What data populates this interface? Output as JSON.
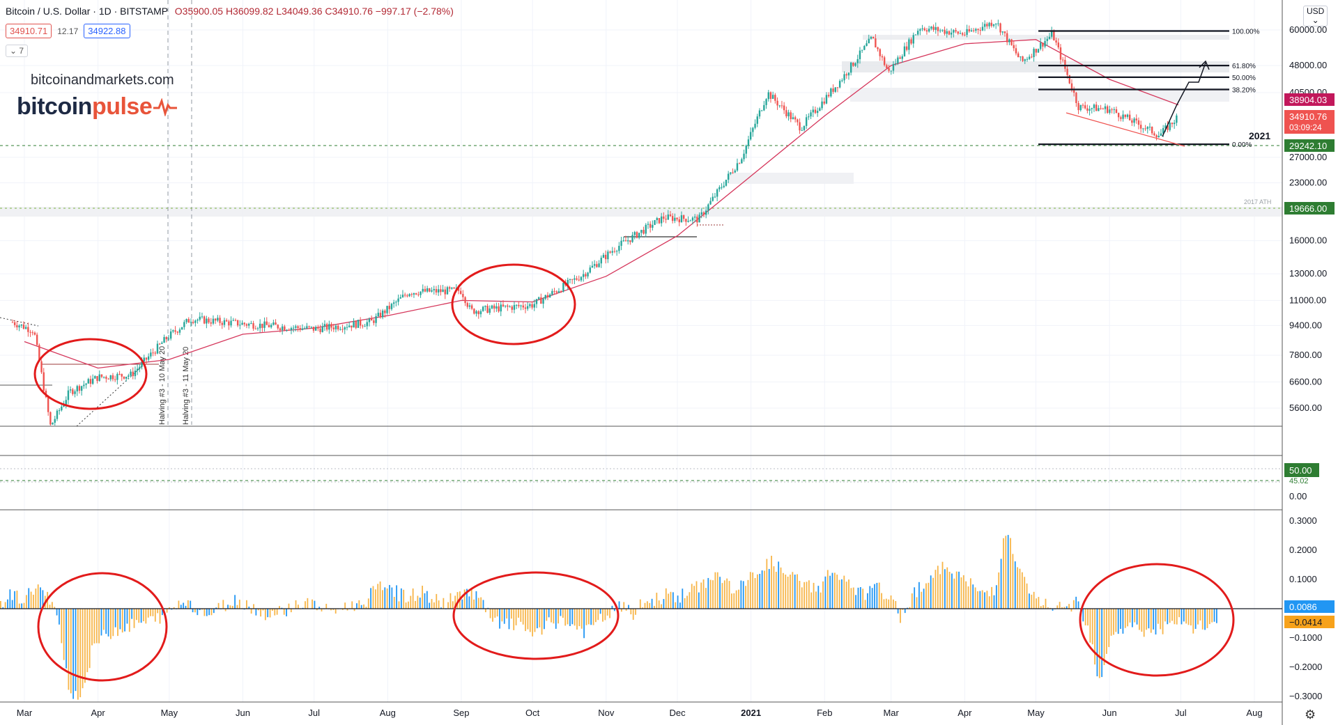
{
  "header": {
    "symbol": "Bitcoin / U.S. Dollar · 1D · BITSTAMP",
    "ohlc": "O35900.05  H36099.82  L34049.36  C34910.76  −997.17 (−2.78%)",
    "bid": "34910.71",
    "spread": "12.17",
    "ask": "34922.88",
    "indicator_toggle": "⌄ 7"
  },
  "branding": {
    "site": "bitcoinandmarkets.com",
    "logo_part1": "bitcoin",
    "logo_part2": "pulse"
  },
  "currency_badge": "USD\n⌄",
  "colors": {
    "up": "#26a69a",
    "down": "#ef5350",
    "ma": "#d5365b",
    "circle": "#e21b1b",
    "hist_pos": "#f7b548",
    "hist_blue": "#2196f3"
  },
  "chart_data": {
    "type": "candlestick",
    "title": "Bitcoin / U.S. Dollar",
    "y_scale": "log",
    "y_ticks": [
      "60000.00",
      "48000.00",
      "40500.00",
      "34910.76",
      "27000.00",
      "23000.00",
      "19666.00",
      "16000.00",
      "13000.00",
      "11000.00",
      "9400.00",
      "7800.00",
      "6600.00",
      "5600.00"
    ],
    "x_months": [
      "Mar",
      "Apr",
      "May",
      "Jun",
      "Jul",
      "Aug",
      "Sep",
      "Oct",
      "Nov",
      "Dec",
      "2021",
      "Feb",
      "Mar",
      "Apr",
      "May",
      "Jun",
      "Jul",
      "Aug"
    ],
    "price_series": [
      {
        "date": "2020-02-25",
        "close": 9600
      },
      {
        "date": "2020-03-05",
        "close": 9100
      },
      {
        "date": "2020-03-12",
        "close": 5000
      },
      {
        "date": "2020-03-20",
        "close": 6200
      },
      {
        "date": "2020-04-01",
        "close": 6800
      },
      {
        "date": "2020-04-15",
        "close": 6900
      },
      {
        "date": "2020-04-30",
        "close": 8700
      },
      {
        "date": "2020-05-10",
        "close": 9800
      },
      {
        "date": "2020-06-01",
        "close": 9500
      },
      {
        "date": "2020-07-01",
        "close": 9200
      },
      {
        "date": "2020-07-25",
        "close": 9600
      },
      {
        "date": "2020-08-10",
        "close": 11600
      },
      {
        "date": "2020-09-01",
        "close": 11700
      },
      {
        "date": "2020-09-05",
        "close": 10300
      },
      {
        "date": "2020-10-01",
        "close": 10700
      },
      {
        "date": "2020-10-22",
        "close": 12900
      },
      {
        "date": "2020-11-05",
        "close": 15300
      },
      {
        "date": "2020-11-25",
        "close": 18500
      },
      {
        "date": "2020-12-10",
        "close": 18300
      },
      {
        "date": "2020-12-28",
        "close": 27000
      },
      {
        "date": "2021-01-08",
        "close": 40500
      },
      {
        "date": "2021-01-22",
        "close": 32500
      },
      {
        "date": "2021-02-08",
        "close": 44000
      },
      {
        "date": "2021-02-21",
        "close": 57000
      },
      {
        "date": "2021-02-28",
        "close": 46000
      },
      {
        "date": "2021-03-13",
        "close": 61000
      },
      {
        "date": "2021-04-01",
        "close": 58500
      },
      {
        "date": "2021-04-14",
        "close": 63500
      },
      {
        "date": "2021-04-25",
        "close": 49000
      },
      {
        "date": "2021-05-08",
        "close": 58500
      },
      {
        "date": "2021-05-19",
        "close": 37000
      },
      {
        "date": "2021-06-01",
        "close": 36500
      },
      {
        "date": "2021-06-22",
        "close": 31000
      },
      {
        "date": "2021-06-30",
        "close": 34910.76
      }
    ],
    "moving_average": [
      {
        "date": "2020-03-01",
        "value": 8500
      },
      {
        "date": "2020-04-01",
        "value": 7200
      },
      {
        "date": "2020-05-01",
        "value": 7600
      },
      {
        "date": "2020-06-01",
        "value": 8900
      },
      {
        "date": "2020-07-01",
        "value": 9250
      },
      {
        "date": "2020-08-01",
        "value": 10000
      },
      {
        "date": "2020-09-01",
        "value": 11000
      },
      {
        "date": "2020-10-01",
        "value": 10900
      },
      {
        "date": "2020-11-01",
        "value": 12800
      },
      {
        "date": "2020-12-01",
        "value": 16500
      },
      {
        "date": "2021-01-01",
        "value": 24000
      },
      {
        "date": "2021-02-01",
        "value": 35000
      },
      {
        "date": "2021-03-01",
        "value": 48000
      },
      {
        "date": "2021-04-01",
        "value": 55000
      },
      {
        "date": "2021-05-01",
        "value": 56500
      },
      {
        "date": "2021-06-01",
        "value": 44000
      },
      {
        "date": "2021-06-30",
        "value": 37500
      }
    ],
    "fibonacci": [
      {
        "level": "100.00%",
        "price": 59600
      },
      {
        "level": "61.80%",
        "price": 48000
      },
      {
        "level": "50.00%",
        "price": 44600
      },
      {
        "level": "38.20%",
        "price": 41300
      },
      {
        "level": "0.00%",
        "price": 29300
      }
    ],
    "annotations": {
      "halving_1": "Halving #3 - 10 May 20",
      "halving_2": "Halving #3 - 11 May 20",
      "year_label": "2021",
      "ath_label": "2017 ATH"
    },
    "price_tags": {
      "upper": "38904.03",
      "current": "34910.76",
      "countdown": "03:09:24",
      "support": "29242.10",
      "ath": "19666.00"
    },
    "middle_panel": {
      "tag_value": "50.00",
      "tag_sub": "45.02",
      "tick": "0.00"
    },
    "oscillator": {
      "y_ticks": [
        "0.3000",
        "0.2000",
        "0.1000",
        "−0.1000",
        "−0.2000",
        "−0.3000"
      ],
      "ylim": [
        -0.31,
        0.32
      ],
      "tags": [
        "0.0086",
        "−0.0414"
      ],
      "values": [
        0.02,
        0.05,
        0.03,
        0.08,
        0.04,
        -0.05,
        -0.3,
        -0.28,
        -0.12,
        -0.09,
        -0.07,
        -0.06,
        -0.05,
        -0.04,
        -0.02,
        0.01,
        0.03,
        -0.01,
        -0.02,
        0.01,
        0.03,
        0.02,
        -0.01,
        -0.02,
        -0.01,
        0.01,
        0.02,
        0.01,
        -0.01,
        0.0,
        0.01,
        0.02,
        0.06,
        0.09,
        0.05,
        0.04,
        0.06,
        0.03,
        0.02,
        0.04,
        0.07,
        0.03,
        -0.04,
        -0.06,
        -0.05,
        -0.07,
        -0.09,
        -0.05,
        -0.04,
        -0.06,
        -0.08,
        -0.05,
        -0.02,
        0.01,
        -0.02,
        0.02,
        0.03,
        0.05,
        0.04,
        0.06,
        0.08,
        0.12,
        0.09,
        0.06,
        0.1,
        0.14,
        0.16,
        0.12,
        0.1,
        0.08,
        0.07,
        0.13,
        0.1,
        0.06,
        0.05,
        0.07,
        0.04,
        -0.03,
        0.05,
        0.09,
        0.12,
        0.15,
        0.11,
        0.08,
        0.05,
        0.07,
        0.27,
        0.14,
        0.05,
        0.02,
        0.01,
        -0.01,
        0.03,
        -0.06,
        -0.25,
        -0.08,
        -0.07,
        -0.06,
        -0.08,
        -0.07,
        -0.06,
        -0.05,
        -0.07,
        -0.06,
        -0.04
      ]
    }
  }
}
